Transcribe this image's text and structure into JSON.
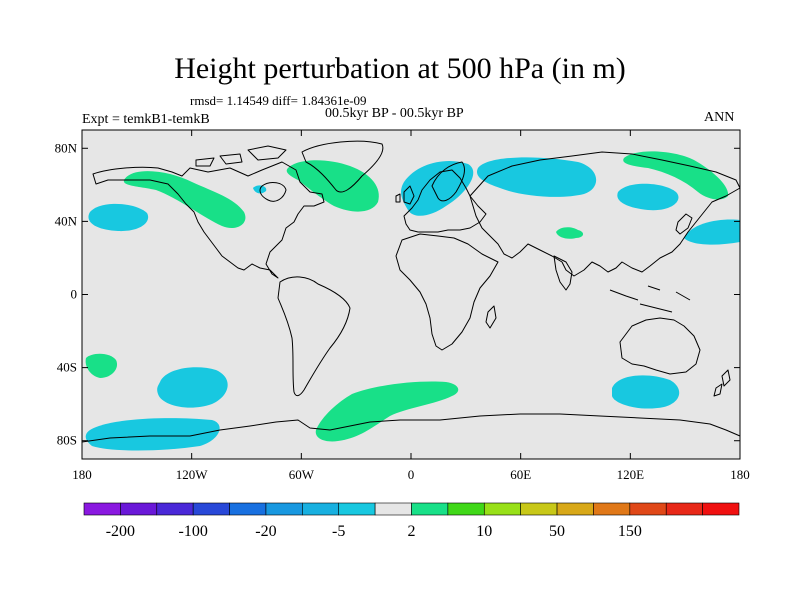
{
  "header": {
    "title": "Height perturbation at 500 hPa (in m)",
    "stats": "rmsd= 1.14549 diff= 1.84361e-09",
    "subtitle": "00.5kyr BP - 00.5kyr BP",
    "left_label": "Expt = temkB1-temkB",
    "right_label": "ANN"
  },
  "map": {
    "projection": "cylindrical-equidistant",
    "lon_range": [
      -180,
      180
    ],
    "lat_range": [
      -90,
      90
    ],
    "background_color": "#e6e6e6",
    "coastline_color": "#000000",
    "lat_ticks": [
      {
        "value": 80,
        "label": "80N"
      },
      {
        "value": 40,
        "label": "40N"
      },
      {
        "value": 0,
        "label": "0"
      },
      {
        "value": -40,
        "label": "40S"
      },
      {
        "value": -80,
        "label": "80S"
      }
    ],
    "lon_ticks": [
      {
        "value": -180,
        "label": "180"
      },
      {
        "value": -120,
        "label": "120W"
      },
      {
        "value": -60,
        "label": "60W"
      },
      {
        "value": 0,
        "label": "0"
      },
      {
        "value": 60,
        "label": "60E"
      },
      {
        "value": 120,
        "label": "120E"
      },
      {
        "value": 180,
        "label": "180"
      }
    ]
  },
  "colorbar": {
    "colors": [
      "#8a18e0",
      "#6a18d8",
      "#4a28d8",
      "#2848d8",
      "#1870e0",
      "#1898e0",
      "#18b0e0",
      "#18c8e0",
      "#e6e6e6",
      "#18e088",
      "#40d818",
      "#98e018",
      "#c8c818",
      "#d8a818",
      "#e07818",
      "#e04818",
      "#e82818",
      "#f01010"
    ],
    "labels": [
      "-200",
      "-100",
      "-20",
      "-5",
      "2",
      "10",
      "50",
      "150"
    ]
  }
}
